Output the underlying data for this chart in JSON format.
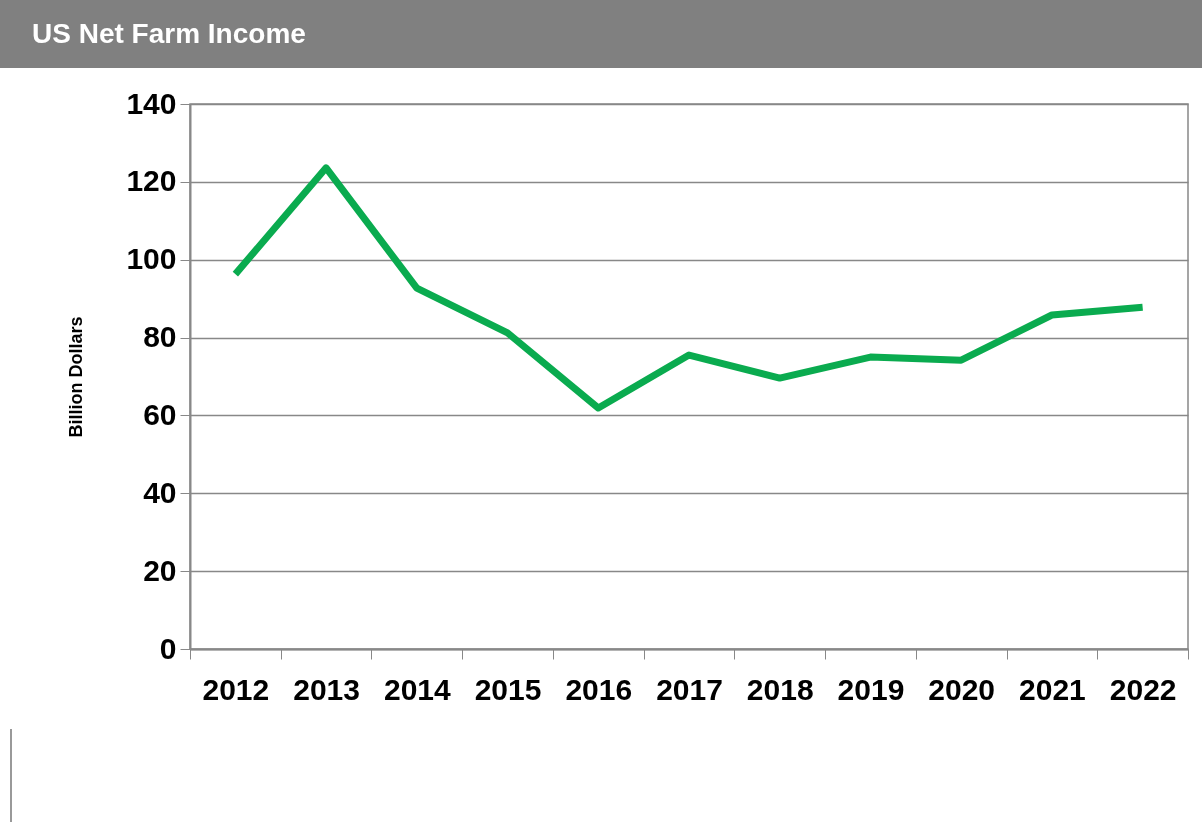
{
  "chart_data": {
    "type": "line",
    "title": "US Net Farm Income",
    "ylabel": "Billion Dollars",
    "categories": [
      "2012",
      "2013",
      "2014",
      "2015",
      "2016",
      "2017",
      "2018",
      "2019",
      "2020",
      "2021",
      "2022"
    ],
    "series": [
      {
        "color": "#0aab4f",
        "values": [
          96.3,
          123.6,
          92.7,
          81.2,
          61.9,
          75.5,
          69.6,
          75.0,
          74.2,
          85.8,
          87.8
        ]
      }
    ],
    "ylim": [
      0,
      140
    ],
    "yticks": [
      0,
      20,
      40,
      60,
      80,
      100,
      120,
      140
    ],
    "grid": "y",
    "marker": "none",
    "line_style": "solid"
  }
}
